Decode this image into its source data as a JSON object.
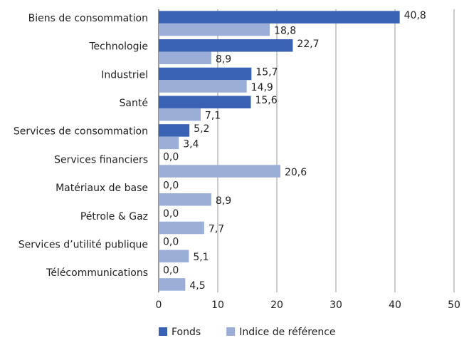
{
  "chart_data": {
    "type": "bar",
    "orientation": "horizontal",
    "categories": [
      "Biens de consommation",
      "Technologie",
      "Industriel",
      "Santé",
      "Services de consommation",
      "Services financiers",
      "Matériaux de base",
      "Pétrole & Gaz",
      "Services d’utilité publique",
      "Télécommunications"
    ],
    "series": [
      {
        "name": "Fonds",
        "color": "#3a62b4",
        "values": [
          40.8,
          22.7,
          15.7,
          15.6,
          5.2,
          0,
          0,
          0,
          0,
          0
        ],
        "value_labels": [
          "40,8",
          "22,7",
          "15,7",
          "15,6",
          "5,2",
          "0,0",
          "0,0",
          "0,0",
          "0,0",
          "0,0"
        ]
      },
      {
        "name": "Indice de référence",
        "color": "#9aaed8",
        "values": [
          18.8,
          8.9,
          14.9,
          7.1,
          3.4,
          20.6,
          8.9,
          7.7,
          5.1,
          4.5
        ],
        "value_labels": [
          "18,8",
          "8,9",
          "14,9",
          "7,1",
          "3,4",
          "20,6",
          "8,9",
          "7,7",
          "5,1",
          "4,5"
        ]
      }
    ],
    "xlim": [
      0,
      50
    ],
    "xticks": [
      0,
      10,
      20,
      30,
      40,
      50
    ],
    "grid": true,
    "legend": "bottom"
  }
}
